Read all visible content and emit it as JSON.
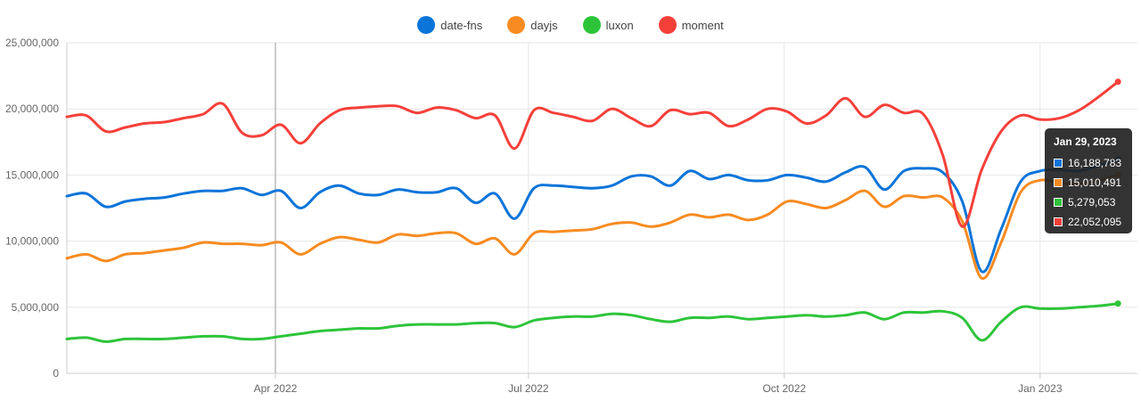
{
  "chart_data": {
    "type": "line",
    "title": "",
    "xlabel": "",
    "ylabel": "",
    "ylim": [
      0,
      25000000
    ],
    "yticks": [
      0,
      5000000,
      10000000,
      15000000,
      20000000,
      25000000
    ],
    "ytick_labels": [
      "0",
      "5,000,000",
      "10,000,000",
      "15,000,000",
      "20,000,000",
      "25,000,000"
    ],
    "xtick_labels": [
      "Apr 2022",
      "Jul 2022",
      "Oct 2022",
      "Jan 2023"
    ],
    "xtick_dates": [
      "2022-04-01",
      "2022-07-01",
      "2022-10-01",
      "2023-01-01"
    ],
    "xlim": [
      "2022-01-16",
      "2023-02-05"
    ],
    "grid": true,
    "legend_position": "top-center",
    "x": [
      "2022-01-16",
      "2022-01-23",
      "2022-01-30",
      "2022-02-06",
      "2022-02-13",
      "2022-02-20",
      "2022-02-27",
      "2022-03-06",
      "2022-03-13",
      "2022-03-20",
      "2022-03-27",
      "2022-04-03",
      "2022-04-10",
      "2022-04-17",
      "2022-04-24",
      "2022-05-01",
      "2022-05-08",
      "2022-05-15",
      "2022-05-22",
      "2022-05-29",
      "2022-06-05",
      "2022-06-12",
      "2022-06-19",
      "2022-06-26",
      "2022-07-03",
      "2022-07-10",
      "2022-07-17",
      "2022-07-24",
      "2022-07-31",
      "2022-08-07",
      "2022-08-14",
      "2022-08-21",
      "2022-08-28",
      "2022-09-04",
      "2022-09-11",
      "2022-09-18",
      "2022-09-25",
      "2022-10-02",
      "2022-10-09",
      "2022-10-16",
      "2022-10-23",
      "2022-10-30",
      "2022-11-06",
      "2022-11-13",
      "2022-11-20",
      "2022-11-27",
      "2022-12-04",
      "2022-12-11",
      "2022-12-18",
      "2022-12-25",
      "2023-01-01",
      "2023-01-08",
      "2023-01-15",
      "2023-01-22",
      "2023-01-29"
    ],
    "series": [
      {
        "name": "date-fns",
        "color": "#0b74d9",
        "values": [
          13400000,
          13600000,
          12600000,
          13000000,
          13200000,
          13300000,
          13600000,
          13800000,
          13800000,
          14000000,
          13500000,
          13800000,
          12500000,
          13700000,
          14200000,
          13600000,
          13500000,
          13900000,
          13700000,
          13700000,
          14000000,
          12900000,
          13600000,
          11700000,
          14000000,
          14200000,
          14100000,
          14000000,
          14200000,
          14900000,
          14900000,
          14200000,
          15300000,
          14700000,
          15000000,
          14600000,
          14600000,
          15000000,
          14800000,
          14500000,
          15200000,
          15600000,
          13900000,
          15300000,
          15500000,
          15200000,
          13000000,
          7700000,
          10900000,
          14500000,
          15300000,
          15400000,
          15300000,
          15700000,
          16188783
        ]
      },
      {
        "name": "dayjs",
        "color": "#f78b21",
        "values": [
          8700000,
          9000000,
          8500000,
          9000000,
          9100000,
          9300000,
          9500000,
          9900000,
          9800000,
          9800000,
          9700000,
          9900000,
          9000000,
          9800000,
          10300000,
          10100000,
          9900000,
          10500000,
          10400000,
          10600000,
          10600000,
          9800000,
          10200000,
          9000000,
          10600000,
          10700000,
          10800000,
          10900000,
          11300000,
          11400000,
          11100000,
          11400000,
          12000000,
          11800000,
          12000000,
          11600000,
          12000000,
          13000000,
          12800000,
          12500000,
          13100000,
          13800000,
          12600000,
          13400000,
          13300000,
          13300000,
          11500000,
          7200000,
          9900000,
          13700000,
          14600000,
          14400000,
          14300000,
          14600000,
          15010491
        ]
      },
      {
        "name": "luxon",
        "color": "#2ec43a",
        "values": [
          2600000,
          2700000,
          2400000,
          2600000,
          2600000,
          2600000,
          2700000,
          2800000,
          2800000,
          2600000,
          2600000,
          2800000,
          3000000,
          3200000,
          3300000,
          3400000,
          3400000,
          3600000,
          3700000,
          3700000,
          3700000,
          3800000,
          3800000,
          3500000,
          4000000,
          4200000,
          4300000,
          4300000,
          4500000,
          4400000,
          4100000,
          3900000,
          4200000,
          4200000,
          4300000,
          4100000,
          4200000,
          4300000,
          4400000,
          4300000,
          4400000,
          4600000,
          4100000,
          4600000,
          4600000,
          4700000,
          4200000,
          2500000,
          3900000,
          5000000,
          4900000,
          4900000,
          5000000,
          5100000,
          5279053
        ]
      },
      {
        "name": "moment",
        "color": "#f5403a",
        "values": [
          19400000,
          19500000,
          18300000,
          18600000,
          18900000,
          19000000,
          19300000,
          19600000,
          20400000,
          18200000,
          18000000,
          18800000,
          17400000,
          18900000,
          19900000,
          20100000,
          20200000,
          20200000,
          19700000,
          20100000,
          19900000,
          19300000,
          19500000,
          17000000,
          19900000,
          19700000,
          19400000,
          19100000,
          20000000,
          19300000,
          18700000,
          19900000,
          19600000,
          19700000,
          18700000,
          19200000,
          20000000,
          19800000,
          18900000,
          19500000,
          20800000,
          19400000,
          20300000,
          19700000,
          19600000,
          16500000,
          11100000,
          15400000,
          18300000,
          19500000,
          19200000,
          19300000,
          19900000,
          20900000,
          22052095
        ]
      }
    ],
    "tooltip": {
      "date_label": "Jan 29, 2023",
      "date": "2023-01-29",
      "values": [
        "16,188,783",
        "15,010,491",
        "5,279,053",
        "22,052,095"
      ]
    },
    "crosshair_date": "2022-04-01"
  }
}
